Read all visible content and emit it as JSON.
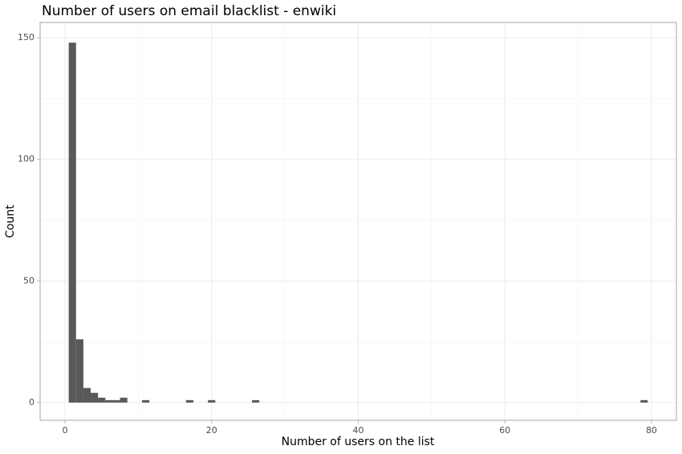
{
  "chart_data": {
    "type": "histogram",
    "title": "Number of users on email blacklist - enwiki",
    "x_label": "Number of users on the list",
    "y_label": "Count",
    "bins": [
      0.5,
      1.5,
      2.5,
      3.5,
      4.5,
      5.5,
      6.5,
      7.5,
      8.5,
      9.5,
      10.5,
      11.5,
      12.5,
      13.5,
      14.5,
      15.5,
      16.5,
      17.5,
      18.5,
      19.5,
      20.5,
      21.5,
      22.5,
      23.5,
      24.5,
      25.5,
      26.5,
      27.5,
      28.5,
      29.5,
      30.5,
      31.5,
      32.5,
      33.5,
      34.5,
      35.5,
      36.5,
      37.5,
      38.5,
      39.5,
      40.5,
      41.5,
      42.5,
      43.5,
      44.5,
      45.5,
      46.5,
      47.5,
      48.5,
      49.5,
      50.5,
      51.5,
      52.5,
      53.5,
      54.5,
      55.5,
      56.5,
      57.5,
      58.5,
      59.5,
      60.5,
      61.5,
      62.5,
      63.5,
      64.5,
      65.5,
      66.5,
      67.5,
      68.5,
      69.5,
      70.5,
      71.5,
      72.5,
      73.5,
      74.5,
      75.5,
      76.5,
      77.5,
      78.5,
      79.5
    ],
    "values": [
      148,
      26,
      6,
      4,
      2,
      1,
      1,
      2,
      0,
      0,
      1,
      0,
      0,
      0,
      0,
      0,
      1,
      0,
      0,
      1,
      0,
      0,
      0,
      0,
      0,
      1,
      0,
      0,
      0,
      0,
      0,
      0,
      0,
      0,
      0,
      0,
      0,
      0,
      0,
      0,
      0,
      0,
      0,
      0,
      0,
      0,
      0,
      0,
      0,
      0,
      0,
      0,
      0,
      0,
      0,
      0,
      0,
      0,
      0,
      0,
      0,
      0,
      0,
      0,
      0,
      0,
      0,
      0,
      0,
      0,
      0,
      0,
      0,
      0,
      0,
      0,
      0,
      0,
      1
    ],
    "color": "#595959",
    "xlim": [
      -3.4,
      83.4
    ],
    "xticks": [
      0,
      20,
      40,
      60,
      80
    ],
    "x_minor_ticks": [
      10,
      30,
      50,
      70
    ],
    "ylim": [
      -7.3,
      156.3
    ],
    "yticks": [
      0,
      50,
      100,
      150
    ],
    "y_minor_ticks": [
      25,
      75,
      125
    ],
    "grid": true
  }
}
